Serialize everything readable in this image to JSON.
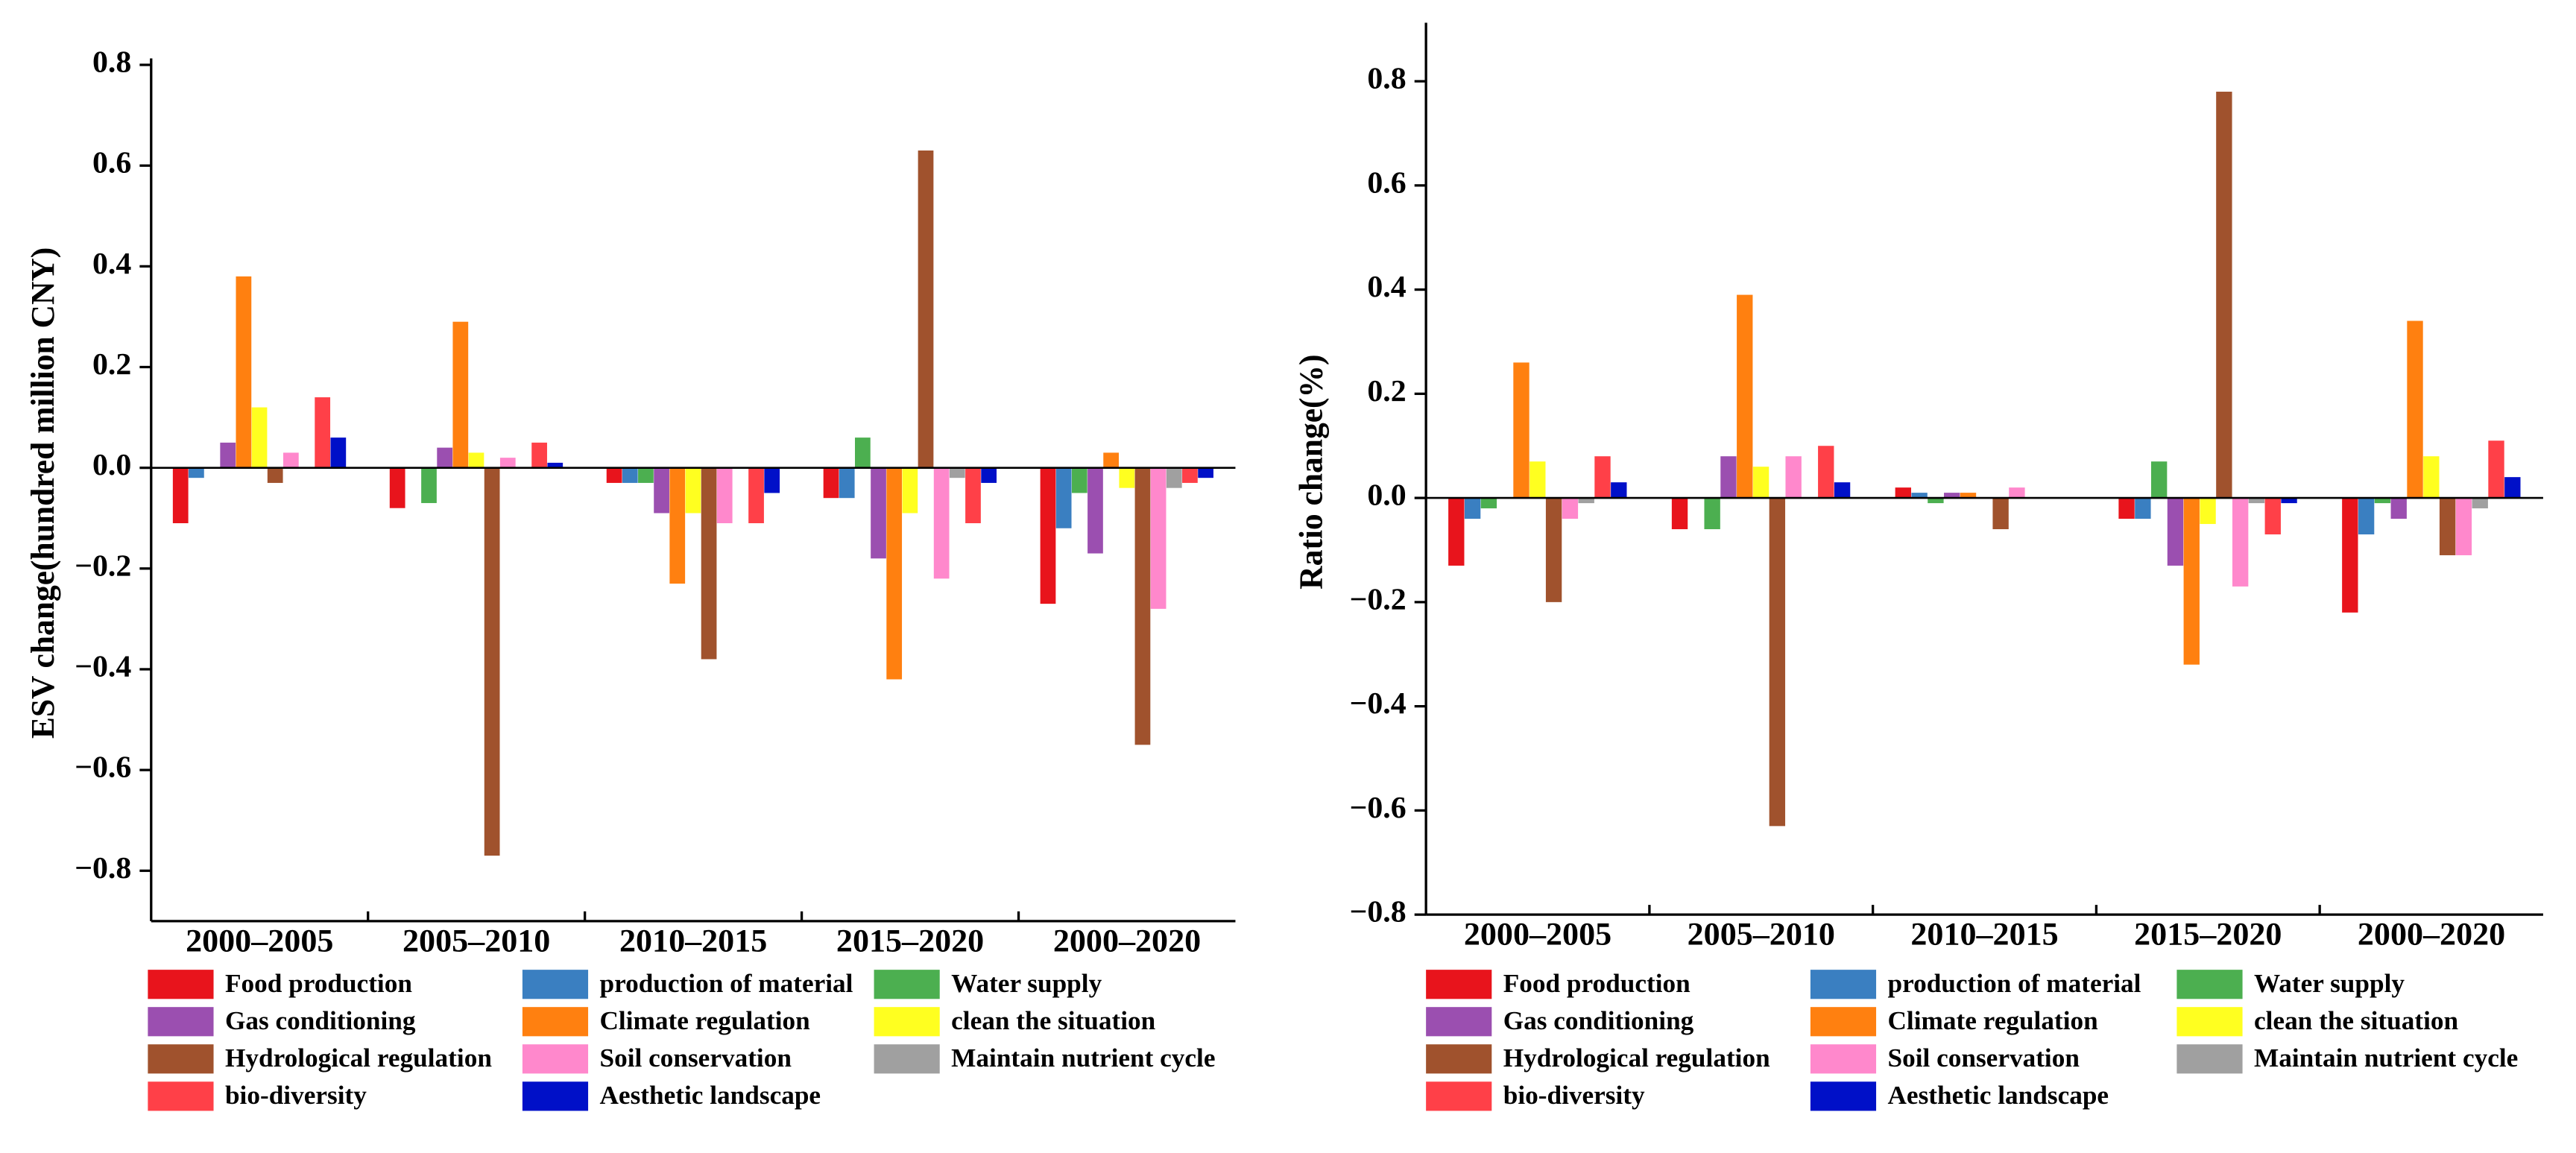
{
  "chart_data": [
    {
      "type": "bar",
      "y_label": "ESV change(hundred million CNY)",
      "categories": [
        "2000–2005",
        "2005–2010",
        "2010–2015",
        "2015–2020",
        "2000–2020"
      ],
      "ylim": [
        -0.9,
        0.8
      ],
      "yticks": [
        {
          "value": -0.8,
          "label": "−0.8"
        },
        {
          "value": -0.6,
          "label": "−0.6"
        },
        {
          "value": -0.4,
          "label": "−0.4"
        },
        {
          "value": -0.2,
          "label": "−0.2"
        },
        {
          "value": 0,
          "label": "0.0"
        },
        0.2,
        0.4,
        0.6,
        0.8
      ],
      "legend": "bottom",
      "series": [
        {
          "name": "Food production",
          "color": "#e8141c",
          "values": [
            -0.11,
            -0.08,
            -0.03,
            -0.06,
            -0.27
          ]
        },
        {
          "name": "production of material",
          "color": "#3a7fc1",
          "values": [
            -0.02,
            0,
            -0.03,
            -0.06,
            -0.12
          ]
        },
        {
          "name": "Water supply",
          "color": "#4caf50",
          "values": [
            0,
            -0.07,
            -0.03,
            0.06,
            -0.05
          ]
        },
        {
          "name": "Gas conditioning",
          "color": "#9b4fb0",
          "values": [
            0.05,
            0.04,
            -0.09,
            -0.18,
            -0.17
          ]
        },
        {
          "name": "Climate regulation",
          "color": "#ff8010",
          "values": [
            0.38,
            0.29,
            -0.23,
            -0.42,
            0.03
          ]
        },
        {
          "name": "clean the situation",
          "color": "#ffff20",
          "values": [
            0.12,
            0.03,
            -0.09,
            -0.09,
            -0.04
          ]
        },
        {
          "name": "Hydrological regulation",
          "color": "#a0522d",
          "values": [
            -0.03,
            -0.77,
            -0.38,
            0.63,
            -0.55
          ]
        },
        {
          "name": "Soil conservation",
          "color": "#ff88cc",
          "values": [
            0.03,
            0.02,
            -0.11,
            -0.22,
            -0.28
          ]
        },
        {
          "name": "Maintain nutrient cycle",
          "color": "#a0a0a0",
          "values": [
            0,
            0,
            0,
            -0.02,
            -0.04
          ]
        },
        {
          "name": "bio-diversity",
          "color": "#ff4048",
          "values": [
            0.14,
            0.05,
            -0.11,
            -0.11,
            -0.03
          ]
        },
        {
          "name": "Aesthetic landscape",
          "color": "#0010c8",
          "values": [
            0.06,
            0.01,
            -0.05,
            -0.03,
            -0.02
          ]
        }
      ]
    },
    {
      "type": "bar",
      "y_label": "Ratio change(%)",
      "categories": [
        "2000–2005",
        "2005–2010",
        "2010–2015",
        "2015–2020",
        "2000–2020"
      ],
      "ylim": [
        -0.8,
        0.9
      ],
      "yticks": [
        {
          "value": -0.8,
          "label": "−0.8"
        },
        {
          "value": -0.6,
          "label": "−0.6"
        },
        {
          "value": -0.4,
          "label": "−0.4"
        },
        {
          "value": -0.2,
          "label": "−0.2"
        },
        {
          "value": 0,
          "label": "0.0"
        },
        0.2,
        0.4,
        0.6,
        0.8
      ],
      "legend": "bottom",
      "series": [
        {
          "name": "Food production",
          "color": "#e8141c",
          "values": [
            -0.13,
            -0.06,
            0.02,
            -0.04,
            -0.22
          ]
        },
        {
          "name": "production of material",
          "color": "#3a7fc1",
          "values": [
            -0.04,
            0,
            0.01,
            -0.04,
            -0.07
          ]
        },
        {
          "name": "Water supply",
          "color": "#4caf50",
          "values": [
            -0.02,
            -0.06,
            -0.01,
            0.07,
            -0.01
          ]
        },
        {
          "name": "Gas conditioning",
          "color": "#9b4fb0",
          "values": [
            0,
            0.08,
            0.01,
            -0.13,
            -0.04
          ]
        },
        {
          "name": "Climate regulation",
          "color": "#ff8010",
          "values": [
            0.26,
            0.39,
            0.01,
            -0.32,
            0.34
          ]
        },
        {
          "name": "clean the situation",
          "color": "#ffff20",
          "values": [
            0.07,
            0.06,
            0,
            -0.05,
            0.08
          ]
        },
        {
          "name": "Hydrological regulation",
          "color": "#a0522d",
          "values": [
            -0.2,
            -0.63,
            -0.06,
            0.78,
            -0.11
          ]
        },
        {
          "name": "Soil conservation",
          "color": "#ff88cc",
          "values": [
            -0.04,
            0.08,
            0.02,
            -0.17,
            -0.11
          ]
        },
        {
          "name": "Maintain nutrient cycle",
          "color": "#a0a0a0",
          "values": [
            -0.01,
            0,
            0,
            -0.01,
            -0.02
          ]
        },
        {
          "name": "bio-diversity",
          "color": "#ff4048",
          "values": [
            0.08,
            0.1,
            0,
            -0.07,
            0.11
          ]
        },
        {
          "name": "Aesthetic landscape",
          "color": "#0010c8",
          "values": [
            0.03,
            0.03,
            0,
            -0.01,
            0.04
          ]
        }
      ]
    }
  ]
}
